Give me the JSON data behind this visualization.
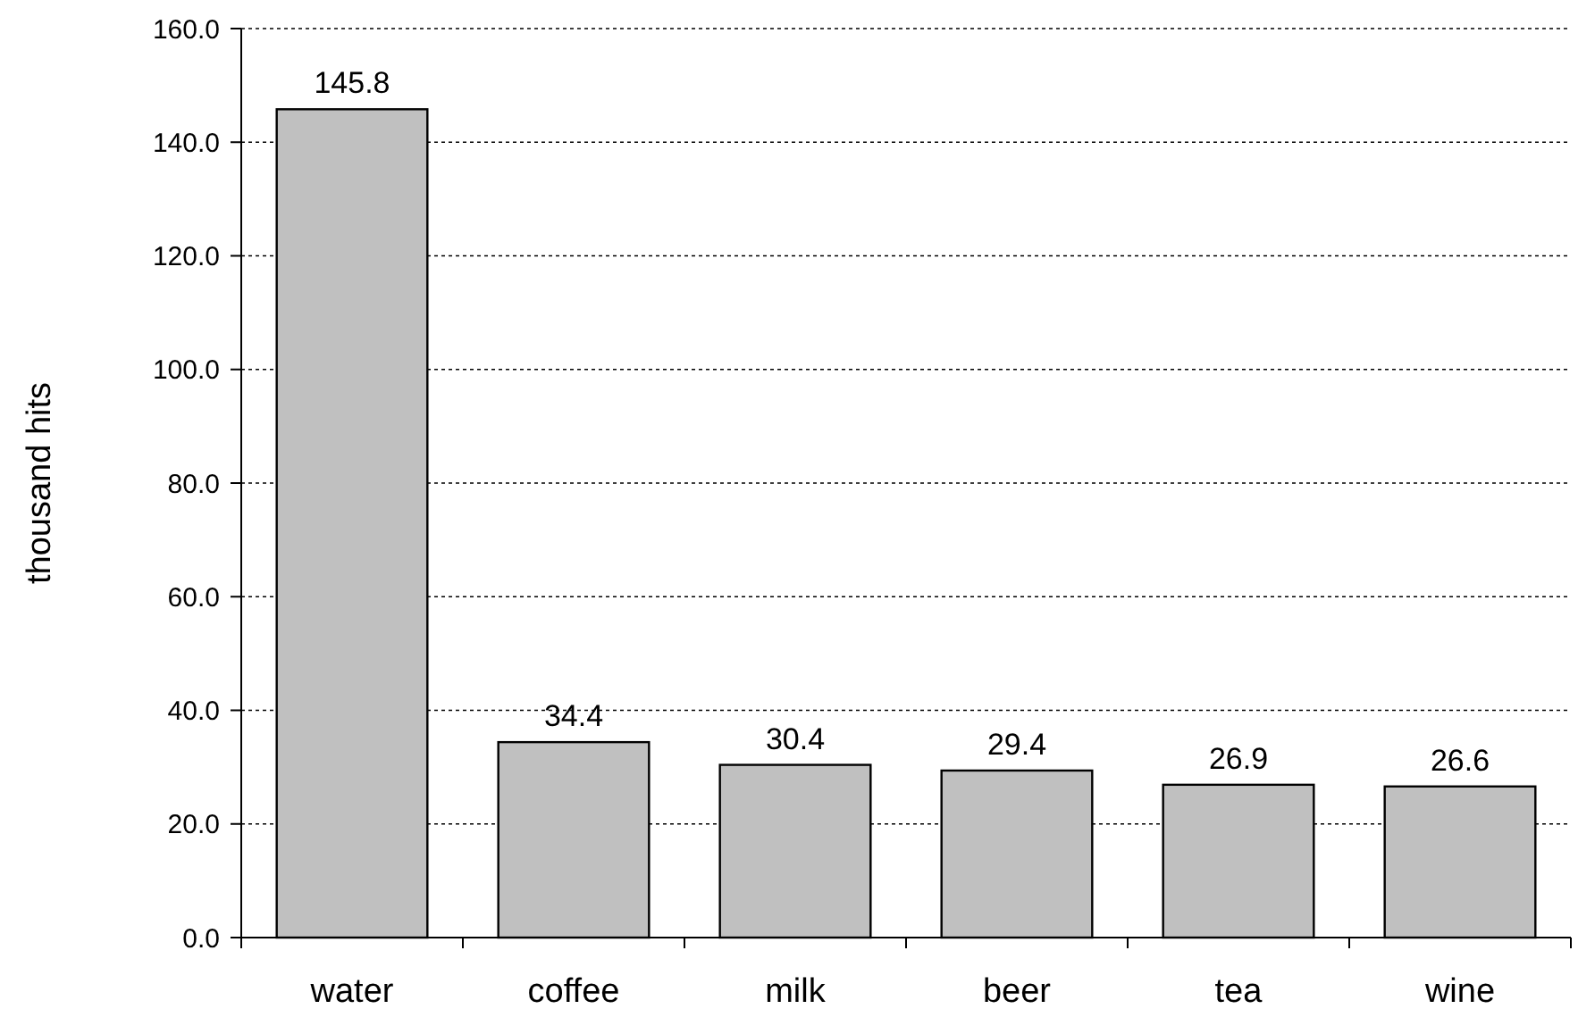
{
  "chart_data": {
    "type": "bar",
    "ylabel": "thousand hits",
    "categories": [
      "water",
      "coffee",
      "milk",
      "beer",
      "tea",
      "wine"
    ],
    "values": [
      145.8,
      34.4,
      30.4,
      29.4,
      26.9,
      26.6
    ],
    "color": "#c0c0c0",
    "data_labels": true,
    "grid": "y",
    "ylim": [
      0,
      160
    ],
    "yticks": [
      {
        "value": 0,
        "label": "0.0"
      },
      {
        "value": 20,
        "label": "20.0"
      },
      {
        "value": 40,
        "label": "40.0"
      },
      {
        "value": 60,
        "label": "60.0"
      },
      {
        "value": 80,
        "label": "80.0"
      },
      {
        "value": 100,
        "label": "100.0"
      },
      {
        "value": 120,
        "label": "120.0"
      },
      {
        "value": 140,
        "label": "140.0"
      },
      {
        "value": 160,
        "label": "160.0"
      }
    ]
  }
}
